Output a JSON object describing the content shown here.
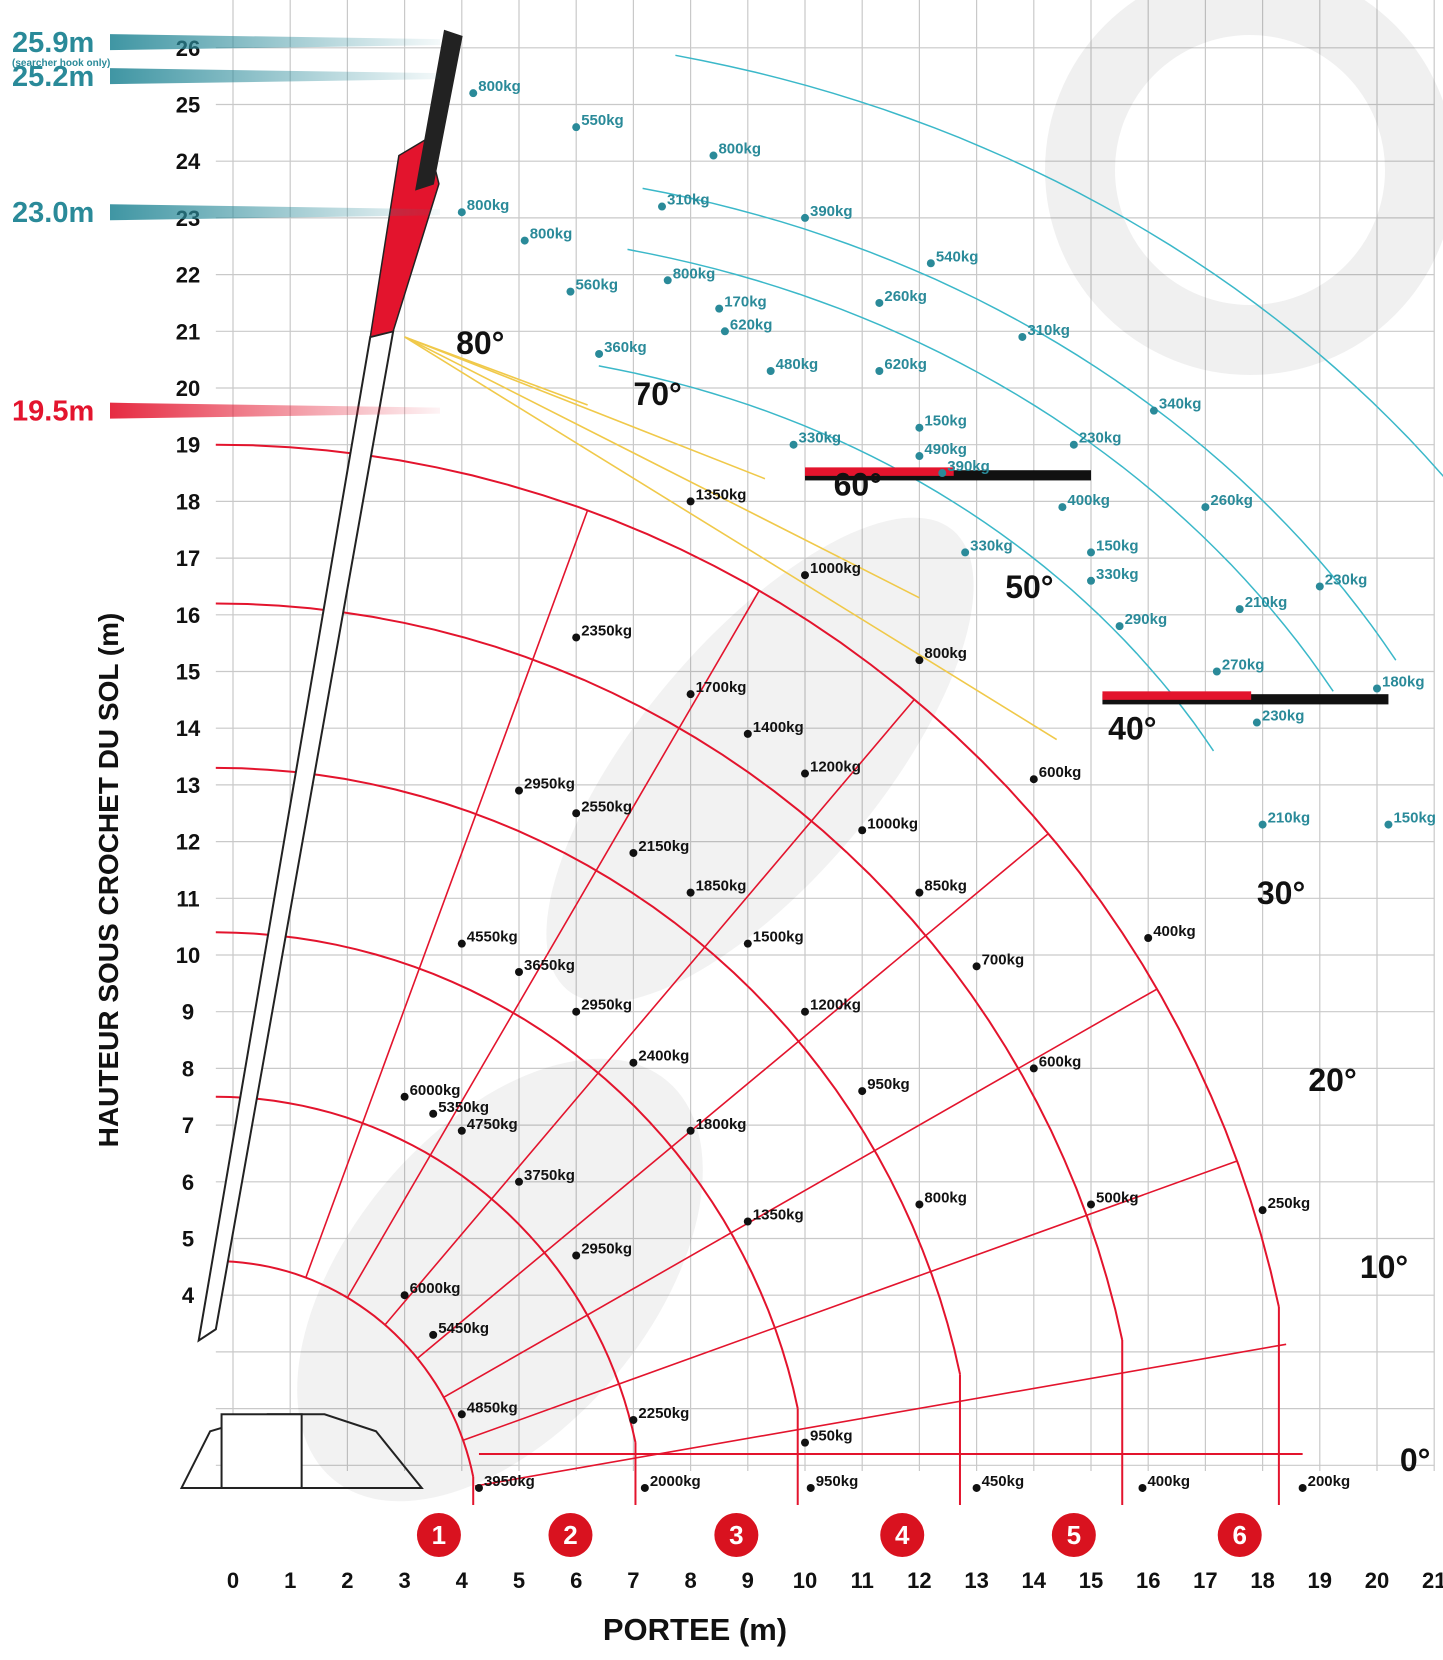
{
  "chart_data": {
    "type": "scatter",
    "xlabel": "PORTEE (m)",
    "ylabel": "HAUTEUR SOUS CROCHET DU SOL (m)",
    "xlim": [
      0,
      21
    ],
    "ylim": [
      0,
      27
    ],
    "x_ticks": [
      "0",
      "1",
      "2",
      "3",
      "4",
      "5",
      "6",
      "7",
      "8",
      "9",
      "10",
      "11",
      "12",
      "13",
      "14",
      "15",
      "16",
      "17",
      "18",
      "19",
      "20",
      "21"
    ],
    "y_ticks": [
      "4",
      "5",
      "6",
      "7",
      "8",
      "9",
      "10",
      "11",
      "12",
      "13",
      "14",
      "15",
      "16",
      "17",
      "18",
      "19",
      "20",
      "21",
      "22",
      "23",
      "24",
      "25",
      "26",
      "27"
    ],
    "grid": true,
    "height_labels": [
      {
        "text": "25.9m",
        "y": 26.1,
        "color": "#2a8a99"
      },
      {
        "text": "25.2m",
        "y": 25.5,
        "color": "#2a8a99"
      },
      {
        "text": "23.0m",
        "y": 23.1,
        "color": "#2a8a99"
      },
      {
        "text": "19.5m",
        "y": 19.6,
        "color": "#e3142d"
      }
    ],
    "height_note": "(searcher hook only)",
    "angle_labels": [
      {
        "text": "80°",
        "x": 3.9,
        "y": 20.6
      },
      {
        "text": "70°",
        "x": 7.0,
        "y": 19.7
      },
      {
        "text": "60°",
        "x": 10.5,
        "y": 18.1
      },
      {
        "text": "50°",
        "x": 13.5,
        "y": 16.3
      },
      {
        "text": "40°",
        "x": 15.3,
        "y": 13.8
      },
      {
        "text": "30°",
        "x": 17.9,
        "y": 10.9
      },
      {
        "text": "20°",
        "x": 18.8,
        "y": 7.6
      },
      {
        "text": "10°",
        "x": 19.7,
        "y": 4.3
      },
      {
        "text": "0°",
        "x": 20.4,
        "y": 0.9
      }
    ],
    "zone_labels": [
      "1",
      "2",
      "3",
      "4",
      "5",
      "6"
    ],
    "zone_x": [
      3.6,
      5.9,
      8.8,
      11.7,
      14.7,
      17.6
    ],
    "series": [
      {
        "color": "#111111",
        "points": [
          {
            "x": 4.3,
            "y": 0.6,
            "label": "3950kg"
          },
          {
            "x": 7.2,
            "y": 0.6,
            "label": "2000kg"
          },
          {
            "x": 10.1,
            "y": 0.6,
            "label": "950kg"
          },
          {
            "x": 13.0,
            "y": 0.6,
            "label": "450kg"
          },
          {
            "x": 15.9,
            "y": 0.6,
            "label": "400kg"
          },
          {
            "x": 18.7,
            "y": 0.6,
            "label": "200kg"
          },
          {
            "x": 4.0,
            "y": 1.9,
            "label": "4850kg"
          },
          {
            "x": 7.0,
            "y": 1.8,
            "label": "2250kg"
          },
          {
            "x": 10.0,
            "y": 1.4,
            "label": "950kg"
          },
          {
            "x": 3.5,
            "y": 3.3,
            "label": "5450kg"
          },
          {
            "x": 3.0,
            "y": 4.0,
            "label": "6000kg"
          },
          {
            "x": 6.0,
            "y": 4.7,
            "label": "2950kg"
          },
          {
            "x": 9.0,
            "y": 5.3,
            "label": "1350kg"
          },
          {
            "x": 12.0,
            "y": 5.6,
            "label": "800kg"
          },
          {
            "x": 15.0,
            "y": 5.6,
            "label": "500kg"
          },
          {
            "x": 18.0,
            "y": 5.5,
            "label": "250kg"
          },
          {
            "x": 5.0,
            "y": 6.0,
            "label": "3750kg"
          },
          {
            "x": 4.0,
            "y": 6.9,
            "label": "4750kg"
          },
          {
            "x": 3.5,
            "y": 7.2,
            "label": "5350kg"
          },
          {
            "x": 3.0,
            "y": 7.5,
            "label": "6000kg"
          },
          {
            "x": 8.0,
            "y": 6.9,
            "label": "1800kg"
          },
          {
            "x": 11.0,
            "y": 7.6,
            "label": "950kg"
          },
          {
            "x": 14.0,
            "y": 8.0,
            "label": "600kg"
          },
          {
            "x": 7.0,
            "y": 8.1,
            "label": "2400kg"
          },
          {
            "x": 6.0,
            "y": 9.0,
            "label": "2950kg"
          },
          {
            "x": 10.0,
            "y": 9.0,
            "label": "1200kg"
          },
          {
            "x": 5.0,
            "y": 9.7,
            "label": "3650kg"
          },
          {
            "x": 4.0,
            "y": 10.2,
            "label": "4550kg"
          },
          {
            "x": 9.0,
            "y": 10.2,
            "label": "1500kg"
          },
          {
            "x": 13.0,
            "y": 9.8,
            "label": "700kg"
          },
          {
            "x": 16.0,
            "y": 10.3,
            "label": "400kg"
          },
          {
            "x": 8.0,
            "y": 11.1,
            "label": "1850kg"
          },
          {
            "x": 12.0,
            "y": 11.1,
            "label": "850kg"
          },
          {
            "x": 7.0,
            "y": 11.8,
            "label": "2150kg"
          },
          {
            "x": 11.0,
            "y": 12.2,
            "label": "1000kg"
          },
          {
            "x": 6.0,
            "y": 12.5,
            "label": "2550kg"
          },
          {
            "x": 5.0,
            "y": 12.9,
            "label": "2950kg"
          },
          {
            "x": 10.0,
            "y": 13.2,
            "label": "1200kg"
          },
          {
            "x": 14.0,
            "y": 13.1,
            "label": "600kg"
          },
          {
            "x": 9.0,
            "y": 13.9,
            "label": "1400kg"
          },
          {
            "x": 8.0,
            "y": 14.6,
            "label": "1700kg"
          },
          {
            "x": 12.0,
            "y": 15.2,
            "label": "800kg"
          },
          {
            "x": 6.0,
            "y": 15.6,
            "label": "2350kg"
          },
          {
            "x": 10.0,
            "y": 16.7,
            "label": "1000kg"
          },
          {
            "x": 8.0,
            "y": 18.0,
            "label": "1350kg"
          }
        ]
      },
      {
        "color": "#2a8a99",
        "points": [
          {
            "x": 4.2,
            "y": 25.2,
            "label": "800kg"
          },
          {
            "x": 6.0,
            "y": 24.6,
            "label": "550kg"
          },
          {
            "x": 8.4,
            "y": 24.1,
            "label": "800kg"
          },
          {
            "x": 10.0,
            "y": 23.0,
            "label": "390kg"
          },
          {
            "x": 4.0,
            "y": 23.1,
            "label": "800kg"
          },
          {
            "x": 7.5,
            "y": 23.2,
            "label": "310kg"
          },
          {
            "x": 5.1,
            "y": 22.6,
            "label": "800kg"
          },
          {
            "x": 7.6,
            "y": 21.9,
            "label": "800kg"
          },
          {
            "x": 12.2,
            "y": 22.2,
            "label": "540kg"
          },
          {
            "x": 5.9,
            "y": 21.7,
            "label": "560kg"
          },
          {
            "x": 8.5,
            "y": 21.4,
            "label": "170kg"
          },
          {
            "x": 11.3,
            "y": 21.5,
            "label": "260kg"
          },
          {
            "x": 8.6,
            "y": 21.0,
            "label": "620kg"
          },
          {
            "x": 13.8,
            "y": 20.9,
            "label": "310kg"
          },
          {
            "x": 6.4,
            "y": 20.6,
            "label": "360kg"
          },
          {
            "x": 9.4,
            "y": 20.3,
            "label": "480kg"
          },
          {
            "x": 11.3,
            "y": 20.3,
            "label": "620kg"
          },
          {
            "x": 16.1,
            "y": 19.6,
            "label": "340kg"
          },
          {
            "x": 12.0,
            "y": 19.3,
            "label": "150kg"
          },
          {
            "x": 9.8,
            "y": 19.0,
            "label": "330kg"
          },
          {
            "x": 14.7,
            "y": 19.0,
            "label": "230kg"
          },
          {
            "x": 12.0,
            "y": 18.8,
            "label": "490kg"
          },
          {
            "x": 12.4,
            "y": 18.5,
            "label": "390kg"
          },
          {
            "x": 17.0,
            "y": 17.9,
            "label": "260kg"
          },
          {
            "x": 14.5,
            "y": 17.9,
            "label": "400kg"
          },
          {
            "x": 12.8,
            "y": 17.1,
            "label": "330kg"
          },
          {
            "x": 15.0,
            "y": 17.1,
            "label": "150kg"
          },
          {
            "x": 15.0,
            "y": 16.6,
            "label": "330kg"
          },
          {
            "x": 19.0,
            "y": 16.5,
            "label": "230kg"
          },
          {
            "x": 17.6,
            "y": 16.1,
            "label": "210kg"
          },
          {
            "x": 15.5,
            "y": 15.8,
            "label": "290kg"
          },
          {
            "x": 17.2,
            "y": 15.0,
            "label": "270kg"
          },
          {
            "x": 20.0,
            "y": 14.7,
            "label": "180kg"
          },
          {
            "x": 17.9,
            "y": 14.1,
            "label": "230kg"
          },
          {
            "x": 18.0,
            "y": 12.3,
            "label": "210kg"
          },
          {
            "x": 20.2,
            "y": 12.3,
            "label": "150kg"
          }
        ]
      }
    ]
  }
}
